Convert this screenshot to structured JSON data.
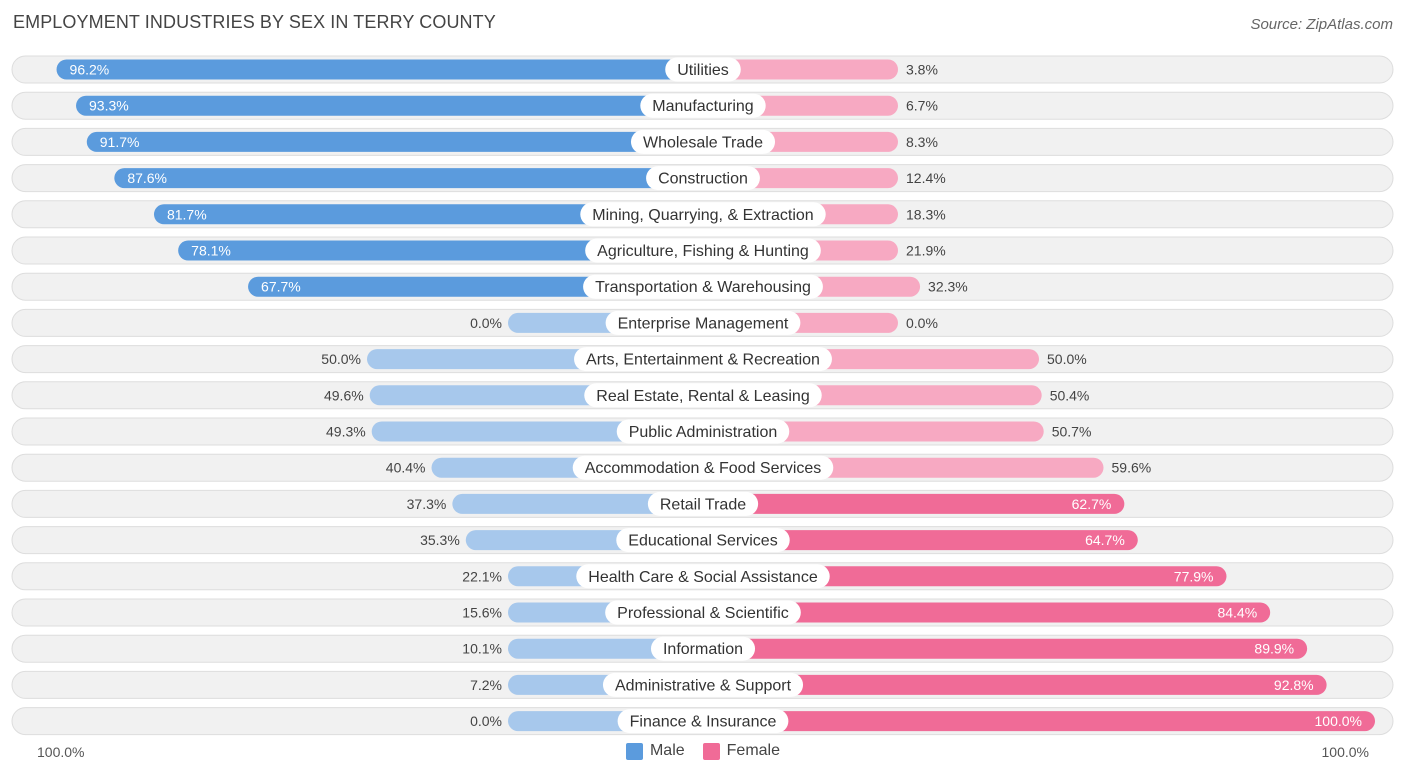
{
  "header": {
    "title": "EMPLOYMENT INDUSTRIES BY SEX IN TERRY COUNTY",
    "source": "Source: ZipAtlas.com"
  },
  "axis": {
    "left_label": "100.0%",
    "right_label": "100.0%"
  },
  "legend": {
    "male_label": "Male",
    "female_label": "Female"
  },
  "colors": {
    "male_strong": "#5b9bdd",
    "male_light": "#a7c8ec",
    "female_strong": "#f06b97",
    "female_light": "#f7a9c2",
    "row_bg": "#f1f1f1",
    "row_border": "#dddddd"
  },
  "chart_data": {
    "type": "bar",
    "orientation": "horizontal-diverging",
    "title": "EMPLOYMENT INDUSTRIES BY SEX IN TERRY COUNTY",
    "unit": "%",
    "xlim": [
      -100,
      100
    ],
    "series_names": [
      "Male",
      "Female"
    ],
    "categories": [
      "Utilities",
      "Manufacturing",
      "Wholesale Trade",
      "Construction",
      "Mining, Quarrying, & Extraction",
      "Agriculture, Fishing & Hunting",
      "Transportation & Warehousing",
      "Enterprise Management",
      "Arts, Entertainment & Recreation",
      "Real Estate, Rental & Leasing",
      "Public Administration",
      "Accommodation & Food Services",
      "Retail Trade",
      "Educational Services",
      "Health Care & Social Assistance",
      "Professional & Scientific",
      "Information",
      "Administrative & Support",
      "Finance & Insurance"
    ],
    "male": [
      96.2,
      93.3,
      91.7,
      87.6,
      81.7,
      78.1,
      67.7,
      0.0,
      50.0,
      49.6,
      49.3,
      40.4,
      37.3,
      35.3,
      22.1,
      15.6,
      10.1,
      7.2,
      0.0
    ],
    "female": [
      3.8,
      6.7,
      8.3,
      12.4,
      18.3,
      21.9,
      32.3,
      0.0,
      50.0,
      50.4,
      50.7,
      59.6,
      62.7,
      64.7,
      77.9,
      84.4,
      89.9,
      92.8,
      100.0
    ],
    "male_labels": [
      "96.2%",
      "93.3%",
      "91.7%",
      "87.6%",
      "81.7%",
      "78.1%",
      "67.7%",
      "0.0%",
      "50.0%",
      "49.6%",
      "49.3%",
      "40.4%",
      "37.3%",
      "35.3%",
      "22.1%",
      "15.6%",
      "10.1%",
      "7.2%",
      "0.0%"
    ],
    "female_labels": [
      "3.8%",
      "6.7%",
      "8.3%",
      "12.4%",
      "18.3%",
      "21.9%",
      "32.3%",
      "0.0%",
      "50.0%",
      "50.4%",
      "50.7%",
      "59.6%",
      "62.7%",
      "64.7%",
      "77.9%",
      "84.4%",
      "89.9%",
      "92.8%",
      "100.0%"
    ]
  }
}
